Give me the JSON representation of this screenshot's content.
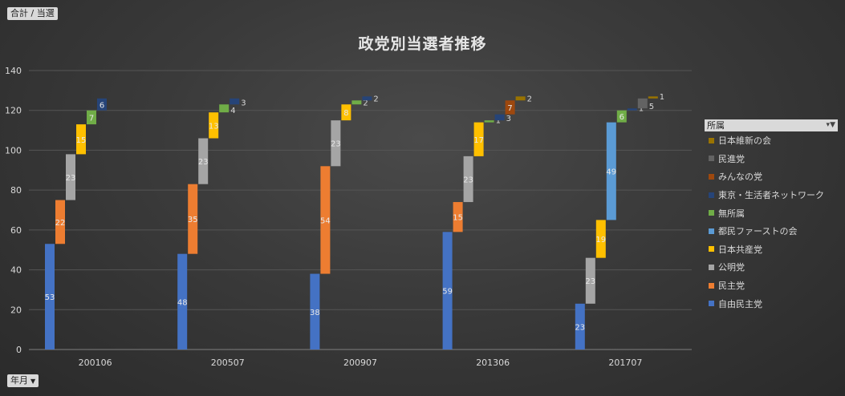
{
  "field_button": "合計 / 当選",
  "axis_button": "年月",
  "legend_title": "所属",
  "chart_data": {
    "type": "bar",
    "title": "政党別当選者推移",
    "ylim": [
      0,
      140
    ],
    "yticks": [
      0,
      20,
      40,
      60,
      80,
      100,
      120,
      140
    ],
    "grid": true,
    "legend_position": "right",
    "categories": [
      "200106",
      "200507",
      "200907",
      "201306",
      "201707"
    ],
    "series": [
      {
        "name": "自由民主党",
        "color": "#4472c4",
        "values": [
          53,
          48,
          38,
          59,
          23
        ]
      },
      {
        "name": "民主党",
        "color": "#ed7d31",
        "values": [
          22,
          35,
          54,
          15,
          null
        ]
      },
      {
        "name": "公明党",
        "color": "#a5a5a5",
        "values": [
          23,
          23,
          23,
          23,
          23
        ]
      },
      {
        "name": "日本共産党",
        "color": "#ffc000",
        "values": [
          15,
          13,
          8,
          17,
          19
        ]
      },
      {
        "name": "都民ファーストの会",
        "color": "#5b9bd5",
        "values": [
          null,
          null,
          null,
          null,
          49
        ]
      },
      {
        "name": "無所属",
        "color": "#70ad47",
        "values": [
          7,
          4,
          2,
          1,
          6
        ]
      },
      {
        "name": "東京・生活者ネットワーク",
        "color": "#264478",
        "values": [
          6,
          3,
          2,
          3,
          1
        ]
      },
      {
        "name": "みんなの党",
        "color": "#9e480e",
        "values": [
          null,
          null,
          null,
          7,
          null
        ]
      },
      {
        "name": "民進党",
        "color": "#636363",
        "values": [
          null,
          null,
          null,
          null,
          5
        ]
      },
      {
        "name": "日本維新の会",
        "color": "#997300",
        "values": [
          null,
          null,
          null,
          2,
          1
        ]
      }
    ]
  }
}
